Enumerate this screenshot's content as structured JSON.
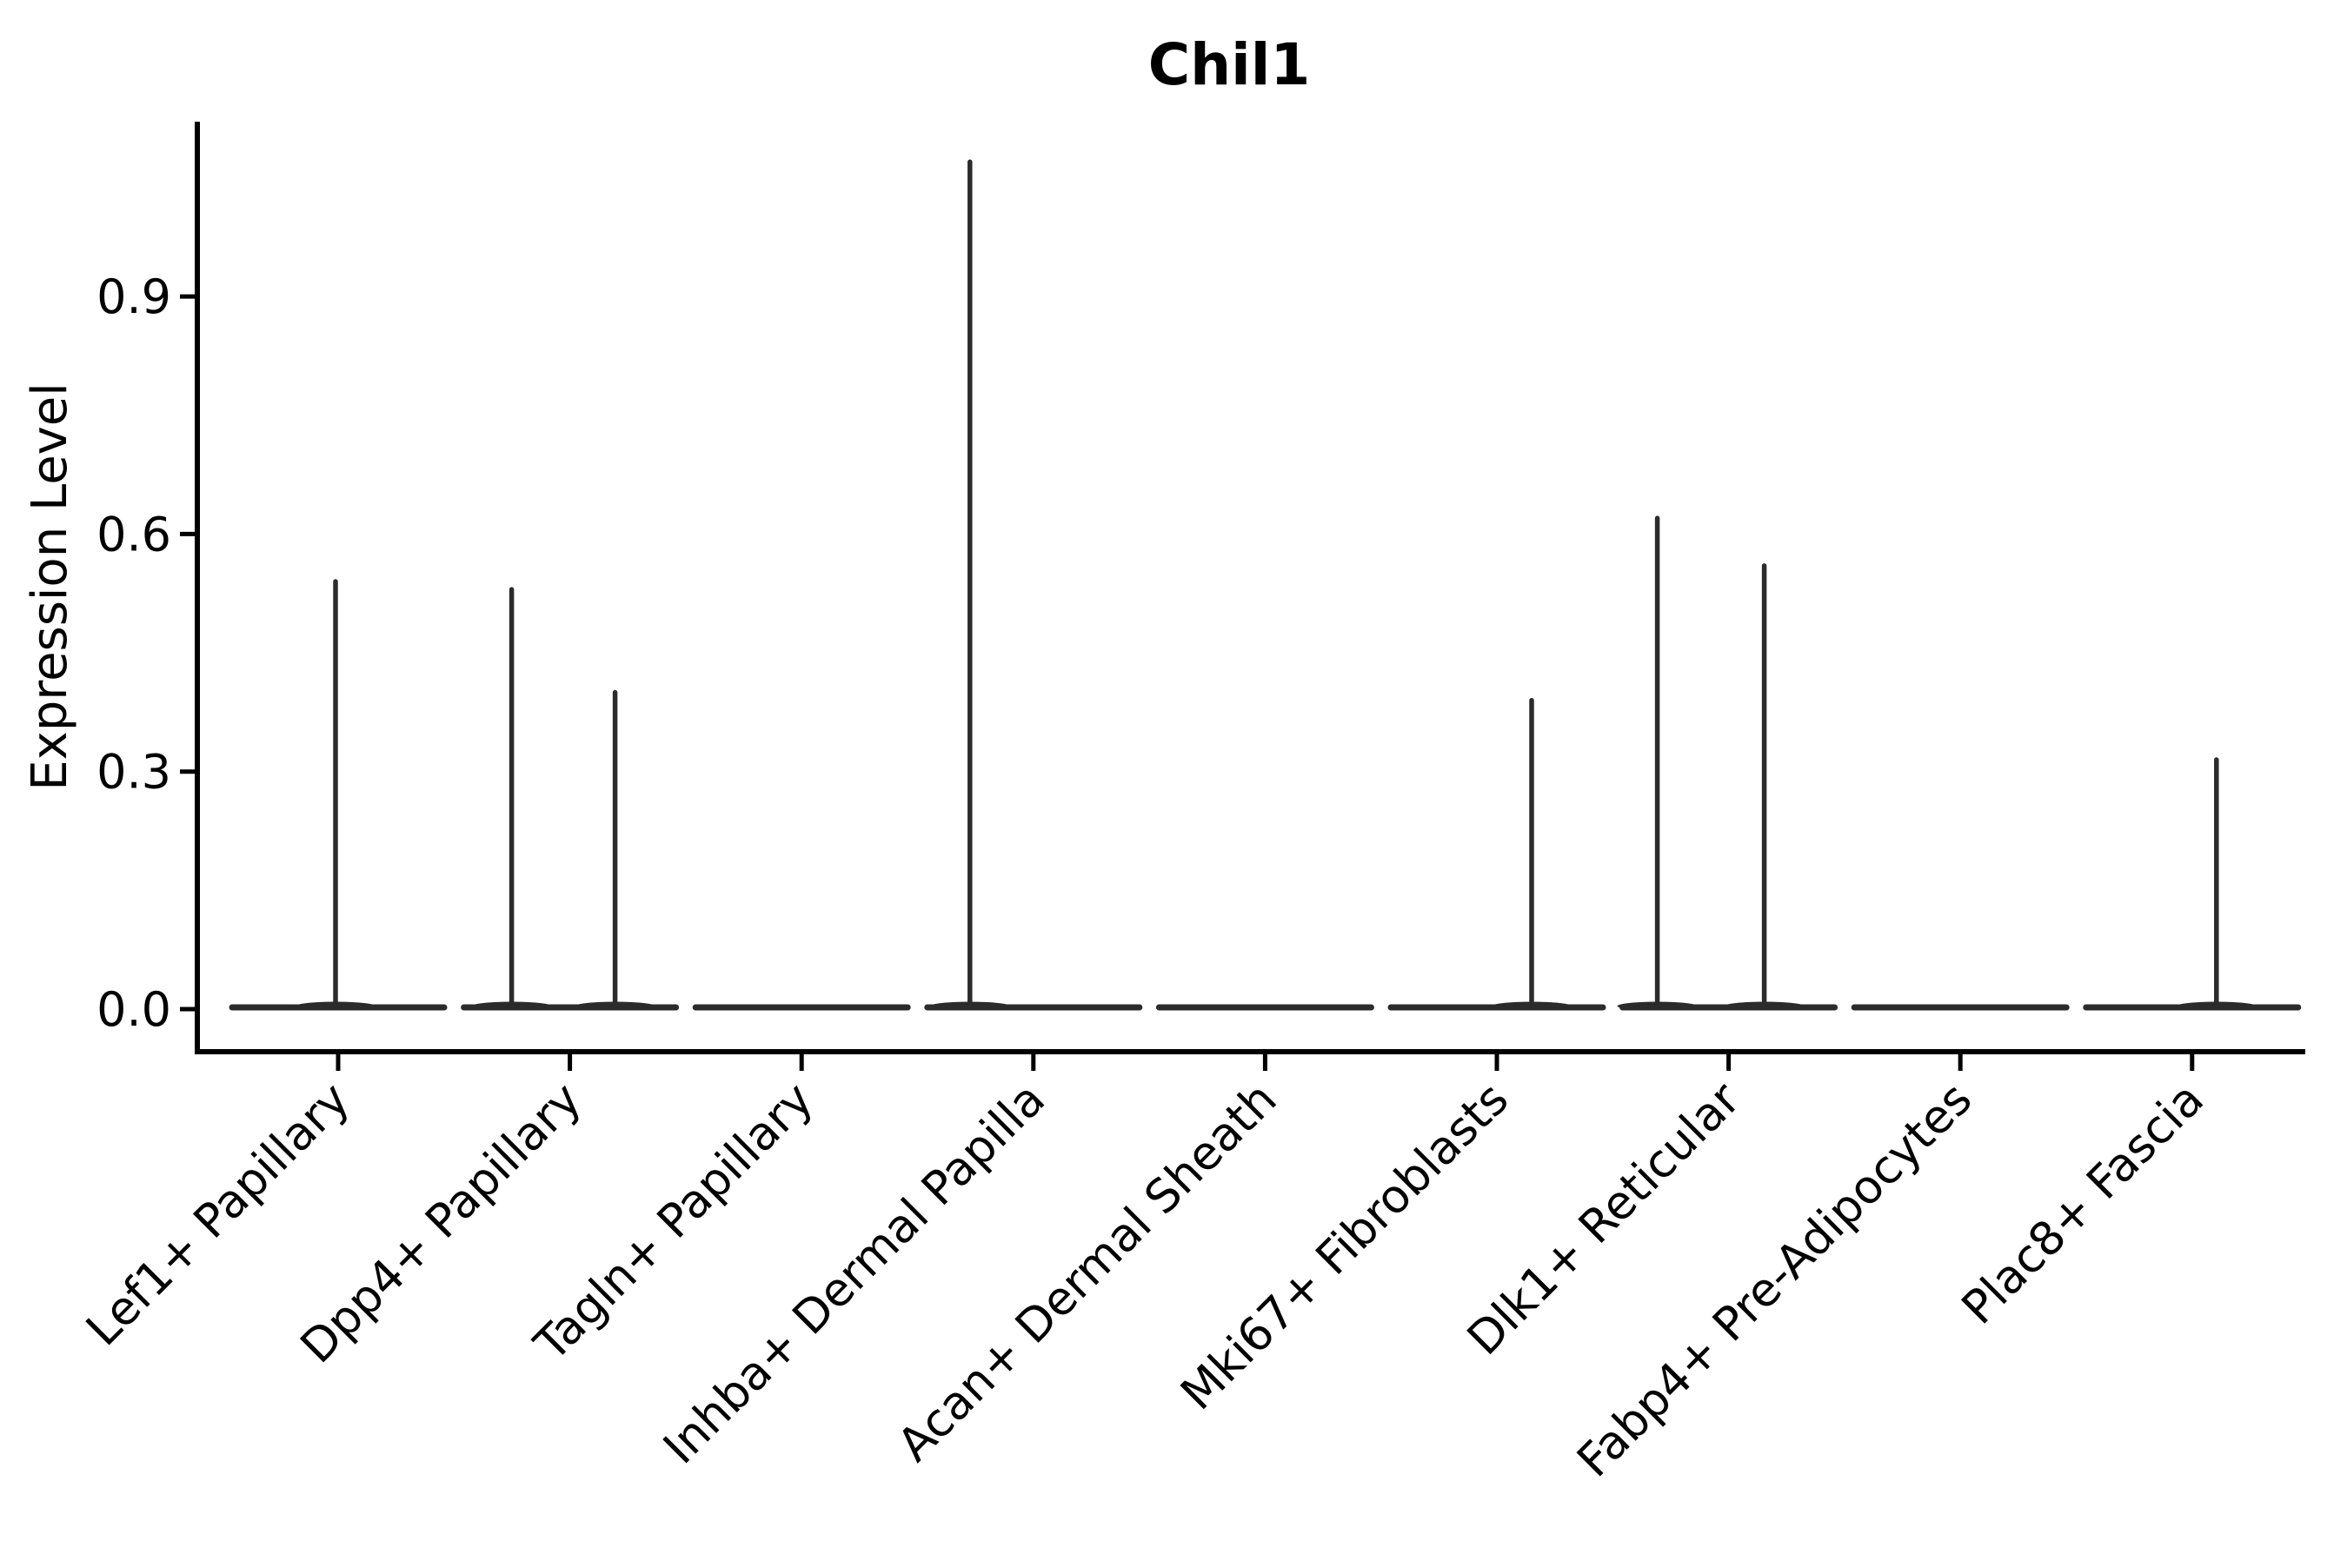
{
  "chart_data": {
    "type": "violin",
    "title": "Chil1",
    "xlabel": "",
    "ylabel": "Expression Level",
    "yticks": [
      0.0,
      0.3,
      0.6,
      0.9
    ],
    "ytick_labels": [
      "0.0",
      "0.3",
      "0.6",
      "0.9"
    ],
    "ylim": [
      0,
      1.12
    ],
    "grid": false,
    "legend": "none",
    "colors": {
      "axis": "#000000",
      "text": "#000000",
      "violin": "#2b2b2b",
      "background": "#ffffff"
    },
    "categories": [
      "Lef1+ Papillary",
      "Dpp4+ Papillary",
      "Tagln+ Papillary",
      "Inhba+ Dermal Papilla",
      "Acan+ Dermal Sheath",
      "Mki67+ Fibroblasts",
      "Dlk1+ Reticular",
      "Fabp4+ Pre-Adipocytes",
      "Plac8+ Fascia"
    ],
    "series": [
      {
        "name": "Lef1+ Papillary",
        "baseline_value": 0.0,
        "spikes": [
          {
            "offset": -3,
            "value": 0.54
          }
        ]
      },
      {
        "name": "Dpp4+ Papillary",
        "baseline_value": 0.0,
        "spikes": [
          {
            "offset": -67,
            "value": 0.53
          },
          {
            "offset": 52,
            "value": 0.4
          }
        ]
      },
      {
        "name": "Tagln+ Papillary",
        "baseline_value": 0.0,
        "spikes": []
      },
      {
        "name": "Inhba+ Dermal Papilla",
        "baseline_value": 0.0,
        "spikes": [
          {
            "offset": -73,
            "value": 1.07
          }
        ]
      },
      {
        "name": "Acan+ Dermal Sheath",
        "baseline_value": 0.0,
        "spikes": []
      },
      {
        "name": "Mki67+ Fibroblasts",
        "baseline_value": 0.0,
        "spikes": [
          {
            "offset": 40,
            "value": 0.39
          }
        ]
      },
      {
        "name": "Dlk1+ Reticular",
        "baseline_value": 0.0,
        "spikes": [
          {
            "offset": -82,
            "value": 0.62
          },
          {
            "offset": 41,
            "value": 0.56
          }
        ]
      },
      {
        "name": "Fabp4+ Pre-Adipocytes",
        "baseline_value": 0.0,
        "spikes": []
      },
      {
        "name": "Plac8+ Fascia",
        "baseline_value": 0.0,
        "spikes": [
          {
            "offset": 28,
            "value": 0.315
          }
        ]
      }
    ]
  }
}
